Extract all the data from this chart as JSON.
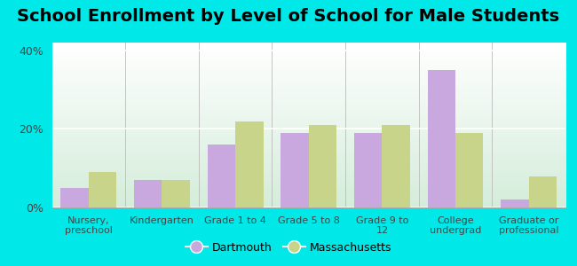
{
  "title": "School Enrollment by Level of School for Male Students",
  "categories": [
    "Nursery,\npreschool",
    "Kindergarten",
    "Grade 1 to 4",
    "Grade 5 to 8",
    "Grade 9 to\n12",
    "College\nundergrad",
    "Graduate or\nprofessional"
  ],
  "dartmouth_values": [
    5.0,
    7.0,
    16.0,
    19.0,
    19.0,
    35.0,
    2.0
  ],
  "massachusetts_values": [
    9.0,
    7.0,
    22.0,
    21.0,
    21.0,
    19.0,
    8.0
  ],
  "dartmouth_color": "#c9a8e0",
  "massachusetts_color": "#c8d48a",
  "background_outer": "#00e8e8",
  "gradient_top": "#ffffff",
  "gradient_bottom": "#d4edda",
  "ylim": [
    0,
    42
  ],
  "yticks": [
    0,
    20,
    40
  ],
  "ytick_labels": [
    "0%",
    "20%",
    "40%"
  ],
  "legend_dartmouth": "Dartmouth",
  "legend_massachusetts": "Massachusetts",
  "title_fontsize": 14,
  "bar_width": 0.38
}
